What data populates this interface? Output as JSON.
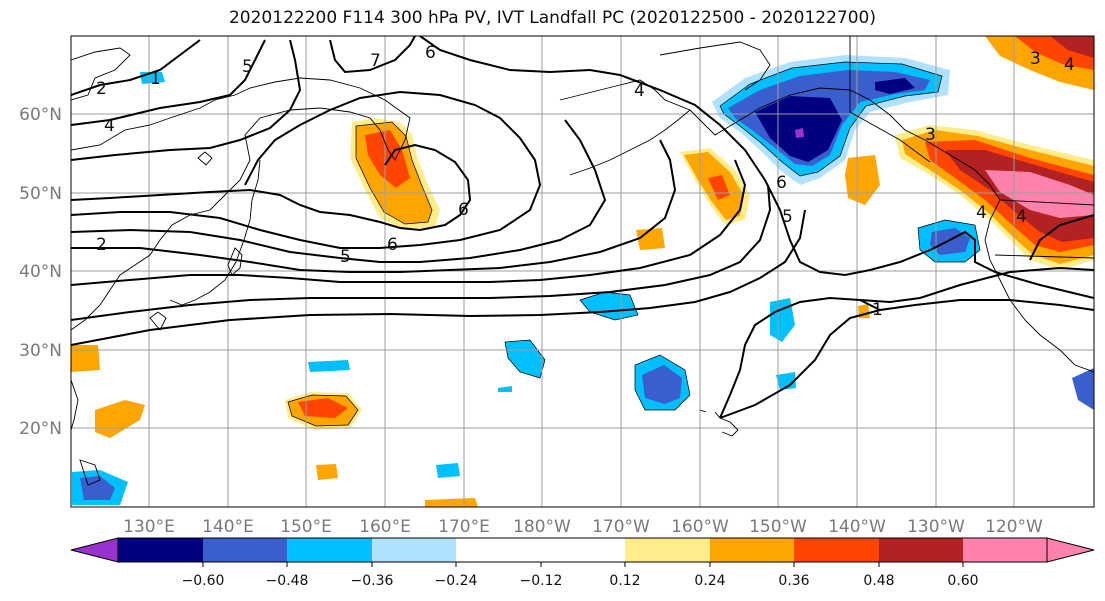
{
  "title": "2020122200 F114 300 hPa PV, IVT Landfall PC (2020122500 - 2020122700)",
  "lon_labels": [
    "130°E",
    "140°E",
    "150°E",
    "160°E",
    "170°E",
    "180°W",
    "170°W",
    "160°W",
    "150°W",
    "140°W",
    "130°W",
    "120°W"
  ],
  "lat_labels": [
    "60°N",
    "50°N",
    "40°N",
    "30°N",
    "20°N"
  ],
  "colorbar": {
    "colors": [
      "#9932cc",
      "#000080",
      "#3a5fcd",
      "#00bfff",
      "#b0e2ff",
      "#ffffff",
      "#ffec8b",
      "#ffa500",
      "#ff4500",
      "#b22222",
      "#ff82ab"
    ],
    "ticks": [
      "−0.60",
      "−0.48",
      "−0.36",
      "−0.24",
      "−0.12",
      "0.12",
      "0.24",
      "0.36",
      "0.48",
      "0.60"
    ]
  },
  "contour_labels": [
    "2",
    "4",
    "5",
    "7",
    "6",
    "2",
    "6",
    "6",
    "5",
    "1",
    "1",
    "4",
    "3",
    "4",
    "6",
    "5",
    "3",
    "4",
    "4"
  ]
}
